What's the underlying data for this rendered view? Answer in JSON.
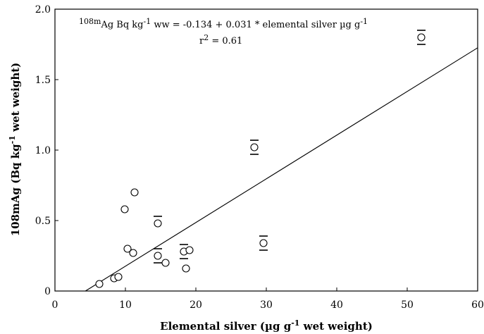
{
  "chart_data": {
    "type": "scatter",
    "title": "",
    "xlabel_main": "Elemental silver (µg g",
    "xlabel_sup": "-1",
    "xlabel_tail": " wet weight)",
    "ylabel_main": "108mAg (Bq kg",
    "ylabel_sup": "-1",
    "ylabel_tail": "  wet weight)",
    "xlim": [
      0,
      60
    ],
    "ylim": [
      0,
      2.0
    ],
    "x_ticks": [
      "0",
      "10",
      "20",
      "30",
      "40",
      "50",
      "60"
    ],
    "y_ticks": [
      "0",
      "0.5",
      "1.0",
      "1.5",
      "2.0"
    ],
    "annotation": {
      "line1_pre_sup": "108m",
      "line1_text": "Ag Bq kg",
      "line1_sup": "-1",
      "line1_tail": " ww = -0.134 + 0.031 * elemental silver µg g",
      "line1_sup2": "-1",
      "line2_text": "r",
      "line2_sup": "2",
      "line2_tail": " = 0.61"
    },
    "regression": {
      "intercept": -0.134,
      "slope": 0.031
    },
    "points": [
      {
        "x": 6.3,
        "y": 0.05
      },
      {
        "x": 8.4,
        "y": 0.09
      },
      {
        "x": 9.0,
        "y": 0.1
      },
      {
        "x": 9.9,
        "y": 0.58
      },
      {
        "x": 10.3,
        "y": 0.3
      },
      {
        "x": 11.1,
        "y": 0.27
      },
      {
        "x": 11.3,
        "y": 0.7
      },
      {
        "x": 14.6,
        "y": 0.48,
        "err_upper": true
      },
      {
        "x": 14.6,
        "y": 0.25,
        "err_both": true
      },
      {
        "x": 15.7,
        "y": 0.2
      },
      {
        "x": 18.3,
        "y": 0.28,
        "err_both": true
      },
      {
        "x": 18.6,
        "y": 0.16
      },
      {
        "x": 19.1,
        "y": 0.29
      },
      {
        "x": 28.3,
        "y": 1.02,
        "err_both": true
      },
      {
        "x": 29.6,
        "y": 0.34,
        "err_both": true
      },
      {
        "x": 52.0,
        "y": 1.8,
        "err_both": true
      }
    ]
  }
}
